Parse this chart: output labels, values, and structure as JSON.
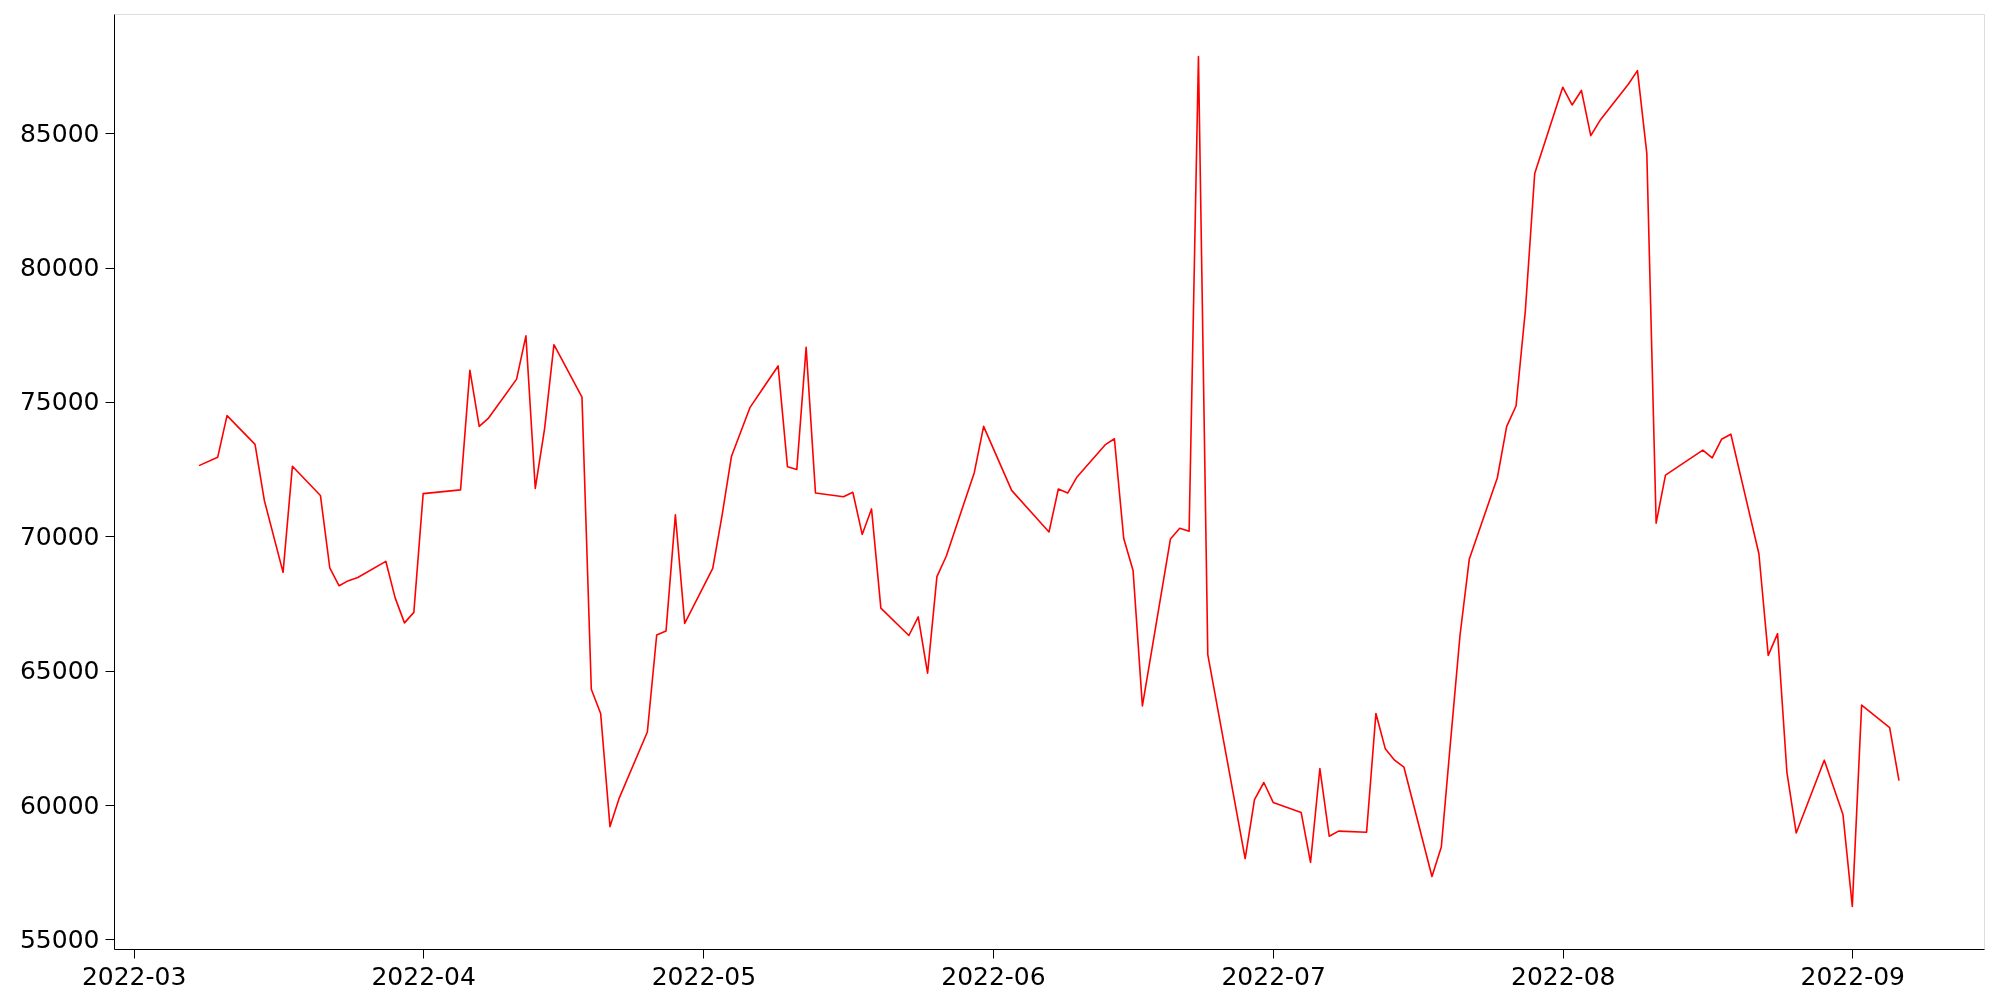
{
  "chart_data": {
    "type": "line",
    "color": "#ff0000",
    "line_style": "solid",
    "x": [
      "2022-03-08",
      "2022-03-10",
      "2022-03-11",
      "2022-03-14",
      "2022-03-15",
      "2022-03-17",
      "2022-03-18",
      "2022-03-21",
      "2022-03-22",
      "2022-03-23",
      "2022-03-24",
      "2022-03-25",
      "2022-03-28",
      "2022-03-29",
      "2022-03-30",
      "2022-03-31",
      "2022-04-01",
      "2022-04-05",
      "2022-04-06",
      "2022-04-07",
      "2022-04-08",
      "2022-04-11",
      "2022-04-12",
      "2022-04-13",
      "2022-04-14",
      "2022-04-15",
      "2022-04-18",
      "2022-04-19",
      "2022-04-20",
      "2022-04-21",
      "2022-04-22",
      "2022-04-25",
      "2022-04-26",
      "2022-04-27",
      "2022-04-28",
      "2022-04-29",
      "2022-05-02",
      "2022-05-03",
      "2022-05-04",
      "2022-05-06",
      "2022-05-09",
      "2022-05-10",
      "2022-05-11",
      "2022-05-12",
      "2022-05-13",
      "2022-05-16",
      "2022-05-17",
      "2022-05-18",
      "2022-05-19",
      "2022-05-20",
      "2022-05-23",
      "2022-05-24",
      "2022-05-25",
      "2022-05-26",
      "2022-05-27",
      "2022-05-30",
      "2022-05-31",
      "2022-06-03",
      "2022-06-07",
      "2022-06-08",
      "2022-06-09",
      "2022-06-10",
      "2022-06-13",
      "2022-06-14",
      "2022-06-15",
      "2022-06-16",
      "2022-06-17",
      "2022-06-20",
      "2022-06-21",
      "2022-06-22",
      "2022-06-23",
      "2022-06-24",
      "2022-06-28",
      "2022-06-29",
      "2022-06-30",
      "2022-07-01",
      "2022-07-04",
      "2022-07-05",
      "2022-07-06",
      "2022-07-07",
      "2022-07-08",
      "2022-07-11",
      "2022-07-12",
      "2022-07-13",
      "2022-07-14",
      "2022-07-15",
      "2022-07-18",
      "2022-07-19",
      "2022-07-20",
      "2022-07-21",
      "2022-07-22",
      "2022-07-25",
      "2022-07-26",
      "2022-07-27",
      "2022-07-28",
      "2022-07-29",
      "2022-08-01",
      "2022-08-02",
      "2022-08-03",
      "2022-08-04",
      "2022-08-05",
      "2022-08-08",
      "2022-08-09",
      "2022-08-10",
      "2022-08-11",
      "2022-08-12",
      "2022-08-16",
      "2022-08-17",
      "2022-08-18",
      "2022-08-19",
      "2022-08-22",
      "2022-08-23",
      "2022-08-24",
      "2022-08-25",
      "2022-08-26",
      "2022-08-29",
      "2022-08-31",
      "2022-09-01",
      "2022-09-02",
      "2022-09-05",
      "2022-09-06"
    ],
    "values": [
      72630,
      72940,
      74490,
      73420,
      71330,
      68660,
      72610,
      71520,
      68830,
      68160,
      68350,
      68470,
      69070,
      67710,
      66780,
      67170,
      71590,
      71730,
      76180,
      74090,
      74400,
      75850,
      77460,
      71780,
      74010,
      77130,
      75180,
      64310,
      63410,
      59200,
      60270,
      62720,
      66330,
      66480,
      70800,
      66760,
      68810,
      70780,
      72970,
      74800,
      76340,
      72590,
      72490,
      77030,
      71610,
      71470,
      71640,
      70070,
      71020,
      67330,
      66310,
      67000,
      64910,
      68500,
      69260,
      72370,
      74090,
      71710,
      70160,
      71760,
      71610,
      72210,
      73400,
      73630,
      69920,
      68730,
      63690,
      69900,
      70300,
      70190,
      87850,
      65600,
      58010,
      60200,
      60840,
      60100,
      59720,
      57870,
      61360,
      58840,
      59030,
      58990,
      63410,
      62100,
      61670,
      61410,
      57340,
      58440,
      62410,
      66310,
      69160,
      72180,
      74090,
      74850,
      78410,
      83500,
      86710,
      86050,
      86590,
      84910,
      85480,
      86810,
      87330,
      84260,
      70490,
      72280,
      73210,
      72920,
      73610,
      73800,
      69350,
      65570,
      66380,
      61220,
      58960,
      61670,
      59650,
      56230,
      63720,
      62880,
      60910
    ],
    "xlim": [
      "2022-02-26T21:36",
      "2022-09-15T02:24"
    ],
    "xticks": [
      {
        "value": "2022-03-01",
        "label": "2022-03"
      },
      {
        "value": "2022-04-01",
        "label": "2022-04"
      },
      {
        "value": "2022-05-01",
        "label": "2022-05"
      },
      {
        "value": "2022-06-01",
        "label": "2022-06"
      },
      {
        "value": "2022-07-01",
        "label": "2022-07"
      },
      {
        "value": "2022-08-01",
        "label": "2022-08"
      },
      {
        "value": "2022-09-01",
        "label": "2022-09"
      }
    ],
    "ylim": [
      54645,
      89435
    ],
    "yticks": [
      55000,
      60000,
      65000,
      70000,
      75000,
      80000,
      85000
    ]
  }
}
